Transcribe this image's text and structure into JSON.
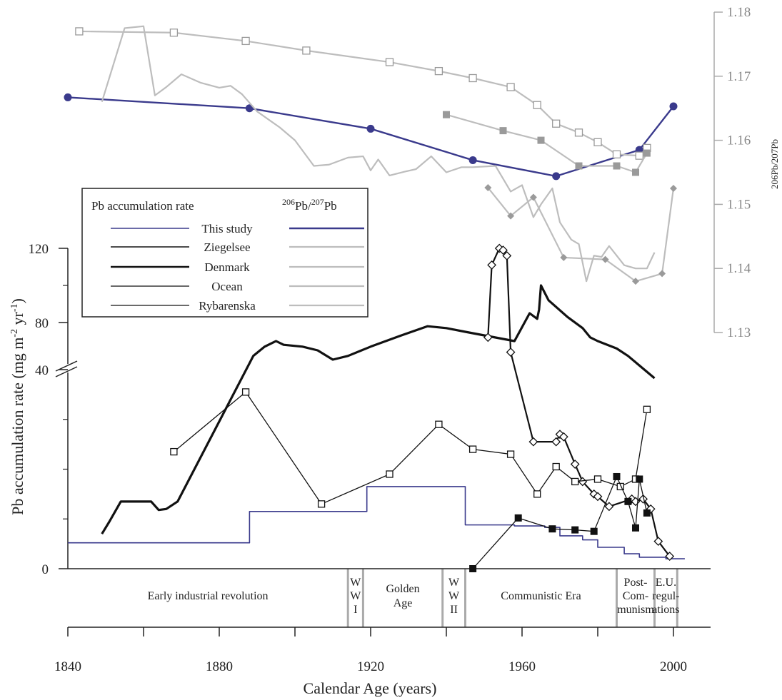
{
  "chart_data": {
    "type": "line",
    "title": "",
    "xlabel": "Calendar Age (years)",
    "ylabel": "Pb accumulation rate (mg m",
    "ylabel_sup1": "-2",
    "ylabel_mid": " yr",
    "ylabel_sup2": "-1",
    "ylabel_end": ")",
    "xlim": [
      1840,
      2010
    ],
    "x_ticks": [
      1840,
      1880,
      1920,
      1960,
      2000
    ],
    "y_axis_left": {
      "broken": true,
      "lower_range": [
        0,
        40
      ],
      "upper_range": [
        40,
        120
      ],
      "tick_labels": [
        "0",
        "40",
        "80",
        "120"
      ]
    },
    "y_axis_right": {
      "label": "206Pb/207Pb",
      "range": [
        1.13,
        1.18
      ],
      "tick_labels": [
        "1.13",
        "1.14",
        "1.15",
        "1.16",
        "1.17",
        "1.18"
      ]
    },
    "legend": {
      "title_left": "Pb accumulation rate",
      "title_right_pre": "206",
      "title_right_mid": "Pb/",
      "title_right_sup": "207",
      "title_right_end": "Pb",
      "entries": [
        "This study",
        "Ziegelsee",
        "Denmark",
        "Ocean",
        "Rybarenska"
      ]
    },
    "colors": {
      "this_study": "#3a3a8c",
      "black": "#111111",
      "gray": "#bdbdbd",
      "gray_dark": "#9a9a9a"
    },
    "eras": [
      {
        "lines": [
          "Early industrial revolution"
        ],
        "from": 1840,
        "to": 1914
      },
      {
        "lines": [
          "W",
          "W",
          "I"
        ],
        "from": 1914,
        "to": 1918
      },
      {
        "lines": [
          "Golden",
          "Age"
        ],
        "from": 1918,
        "to": 1939
      },
      {
        "lines": [
          "W",
          "W",
          "II"
        ],
        "from": 1939,
        "to": 1945
      },
      {
        "lines": [
          "Communistic Era"
        ],
        "from": 1945,
        "to": 1985
      },
      {
        "lines": [
          "Post-",
          "Com-",
          "munism"
        ],
        "from": 1985,
        "to": 1995
      },
      {
        "lines": [
          "E.U.",
          "regul-",
          "ations"
        ],
        "from": 1995,
        "to": 2001
      }
    ],
    "series": [
      {
        "name": "This study",
        "kind": "accumulation-step",
        "x": [
          1840,
          1888,
          1888,
          1919,
          1919,
          1945,
          1945,
          1958,
          1958,
          1966,
          1966,
          1970,
          1970,
          1976,
          1976,
          1980,
          1980,
          1987,
          1987,
          1991,
          1991,
          1998,
          1998,
          2003
        ],
        "y": [
          5.2,
          5.2,
          11.5,
          11.5,
          16.5,
          16.5,
          8.8,
          8.8,
          8.6,
          8.6,
          8.3,
          8.3,
          6.6,
          6.6,
          5.8,
          5.8,
          4.3,
          4.3,
          3.0,
          3.0,
          2.3,
          2.3,
          2.0,
          2.0
        ]
      },
      {
        "name": "Ziegelsee",
        "kind": "accumulation",
        "x": [
          1849,
          1851,
          1854,
          1857,
          1862,
          1864,
          1866,
          1869,
          1889,
          1892,
          1895,
          1897,
          1902,
          1906,
          1910,
          1914,
          1920,
          1928,
          1935,
          1940,
          1945,
          1958,
          1962,
          1964,
          1964.5,
          1965,
          1967,
          1972,
          1976,
          1978,
          1980,
          1985,
          1988,
          1995
        ],
        "y": [
          7.0,
          9.5,
          13.5,
          13.5,
          13.5,
          11.8,
          12.0,
          13.5,
          62,
          67,
          70,
          68,
          67,
          65,
          60,
          62,
          67,
          73,
          78,
          77,
          75,
          70,
          85,
          82,
          87,
          100,
          92,
          83,
          77,
          72,
          70,
          66,
          62,
          50
        ]
      },
      {
        "name": "Denmark",
        "kind": "accumulation",
        "x": [
          1951,
          1952,
          1954,
          1955,
          1956,
          1957,
          1963,
          1969,
          1970,
          1971,
          1974,
          1976,
          1979,
          1980,
          1983,
          1989,
          1990,
          1992,
          1994,
          1996,
          1999
        ],
        "y": [
          72,
          111,
          120,
          119,
          116,
          64,
          25.5,
          25.5,
          27.0,
          26.5,
          21.0,
          17.5,
          15.0,
          14.5,
          12.5,
          14.0,
          13.5,
          14.0,
          12.0,
          5.5,
          2.5
        ]
      },
      {
        "name": "Ocean",
        "kind": "accumulation",
        "x": [
          1868,
          1887,
          1907,
          1925,
          1938,
          1947,
          1957,
          1964,
          1969,
          1974,
          1980,
          1986,
          1990,
          1993
        ],
        "y": [
          23.5,
          35.5,
          13.0,
          19.0,
          29.0,
          24.0,
          23.0,
          15.0,
          20.5,
          17.5,
          18.0,
          16.5,
          18.0,
          32.0
        ]
      },
      {
        "name": "Rybarenska",
        "kind": "accumulation",
        "x": [
          1947,
          1959,
          1968,
          1974,
          1979,
          1985,
          1988,
          1990,
          1991,
          1993
        ],
        "y": [
          0.0,
          10.2,
          8.0,
          7.8,
          7.5,
          18.5,
          13.5,
          8.2,
          18.0,
          11.2
        ]
      },
      {
        "name": "This study",
        "kind": "ratio",
        "marker": "circle",
        "x": [
          1840,
          1888,
          1920,
          1947,
          1969,
          1991,
          2000
        ],
        "y": [
          1.1667,
          1.165,
          1.1618,
          1.1569,
          1.1544,
          1.1585,
          1.1653
        ]
      },
      {
        "name": "Ziegelsee",
        "kind": "ratio",
        "marker": "none",
        "x": [
          1849,
          1855,
          1860,
          1863,
          1866,
          1870,
          1875,
          1880,
          1883,
          1886,
          1890,
          1896,
          1900,
          1905,
          1909,
          1914,
          1918,
          1920,
          1922,
          1925,
          1929,
          1932,
          1936,
          1940,
          1944,
          1947,
          1953,
          1957,
          1960,
          1963,
          1965,
          1968,
          1970,
          1973,
          1975,
          1977,
          1979,
          1981,
          1983,
          1985,
          1987,
          1990,
          1993,
          1995
        ],
        "y": [
          1.166,
          1.1775,
          1.1778,
          1.167,
          1.1683,
          1.1703,
          1.169,
          1.1682,
          1.1685,
          1.1672,
          1.1645,
          1.162,
          1.16,
          1.156,
          1.1562,
          1.1573,
          1.1575,
          1.1553,
          1.157,
          1.1545,
          1.1551,
          1.1555,
          1.1575,
          1.155,
          1.1558,
          1.1558,
          1.156,
          1.152,
          1.153,
          1.148,
          1.15,
          1.1525,
          1.1472,
          1.1445,
          1.1438,
          1.138,
          1.142,
          1.1418,
          1.1435,
          1.142,
          1.1405,
          1.14,
          1.14,
          1.1425
        ]
      },
      {
        "name": "Denmark",
        "kind": "ratio",
        "marker": "diamond",
        "x": [
          1951,
          1957,
          1963,
          1971,
          1982,
          1990,
          1997,
          2000
        ],
        "y": [
          1.1526,
          1.1482,
          1.1511,
          1.1417,
          1.1414,
          1.138,
          1.1392,
          1.1525
        ]
      },
      {
        "name": "Ocean",
        "kind": "ratio",
        "marker": "open-square",
        "x": [
          1843,
          1868,
          1887,
          1903,
          1925,
          1938,
          1947,
          1957,
          1964,
          1969,
          1975,
          1980,
          1985,
          1991,
          1993
        ],
        "y": [
          1.177,
          1.1768,
          1.1755,
          1.174,
          1.1722,
          1.1708,
          1.1697,
          1.1683,
          1.1655,
          1.1626,
          1.1612,
          1.1597,
          1.1578,
          1.1576,
          1.1588
        ]
      },
      {
        "name": "Rybarenska",
        "kind": "ratio",
        "marker": "filled-square",
        "x": [
          1940,
          1955,
          1965,
          1975,
          1985,
          1990,
          1993
        ],
        "y": [
          1.164,
          1.1615,
          1.16,
          1.156,
          1.156,
          1.155,
          1.158
        ]
      }
    ]
  }
}
